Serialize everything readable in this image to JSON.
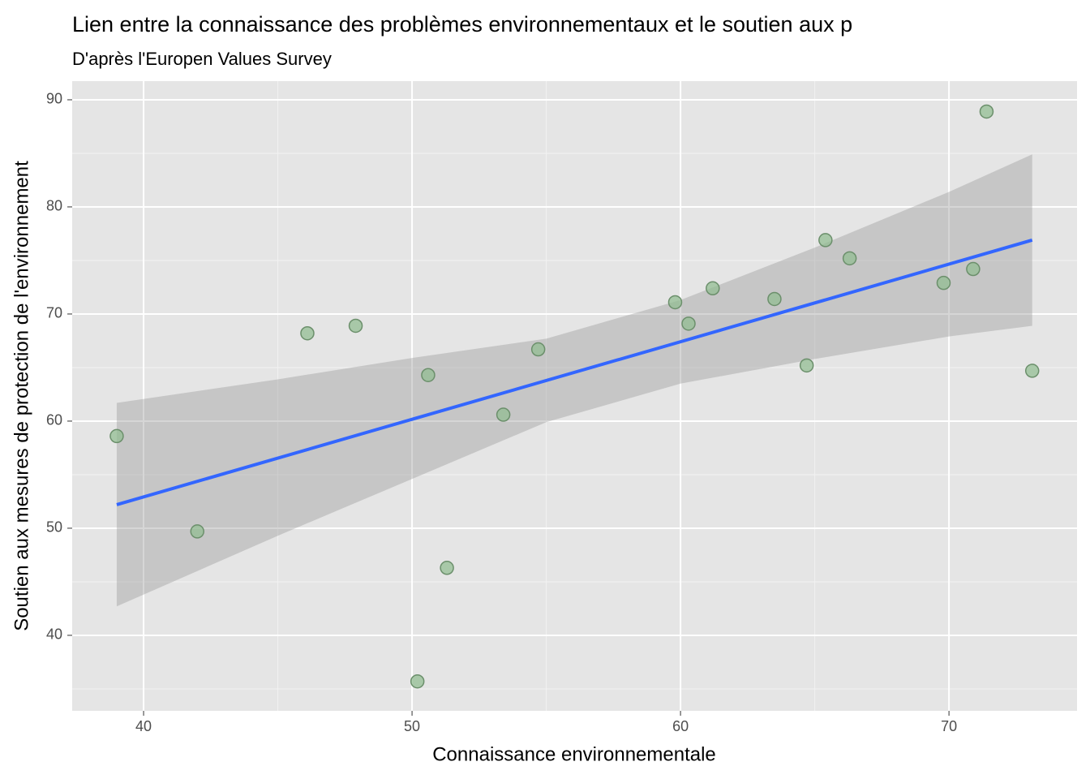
{
  "chart_data": {
    "type": "scatter",
    "title": "Lien entre la connaissance des problèmes environnementaux et le soutien aux p",
    "subtitle": "D'après l'Europen Values Survey",
    "x_label": "Connaissance environnementale",
    "y_label": "Soutien aux mesures de protection de l'environnement",
    "x": [
      39.0,
      42.0,
      46.1,
      47.9,
      50.6,
      50.2,
      51.3,
      53.4,
      54.7,
      59.8,
      60.3,
      61.2,
      63.5,
      64.7,
      65.4,
      66.3,
      69.8,
      70.9,
      71.4,
      73.1
    ],
    "values": [
      58.6,
      49.7,
      68.2,
      68.9,
      64.3,
      35.7,
      46.3,
      60.6,
      66.7,
      71.1,
      69.1,
      72.4,
      71.4,
      65.2,
      76.9,
      75.2,
      72.9,
      74.2,
      88.9,
      64.7
    ],
    "color": "#8fbc8f",
    "fit": {
      "x": [
        39.0,
        73.1
      ],
      "values": [
        52.2,
        76.9
      ],
      "color": "#3366ff"
    },
    "band": {
      "x": [
        39.0,
        45,
        50,
        55,
        60,
        65,
        70,
        73.1
      ],
      "upper": [
        61.7,
        63.9,
        65.9,
        67.7,
        71.3,
        76.2,
        81.4,
        84.9
      ],
      "lower": [
        42.7,
        49.3,
        54.6,
        59.9,
        63.5,
        65.8,
        67.9,
        68.9
      ]
    },
    "xlim": [
      37.34,
      74.77
    ],
    "ylim": [
      32.95,
      91.74
    ],
    "xticks": [
      40,
      50,
      60,
      70
    ],
    "yticks": [
      40,
      50,
      60,
      70,
      80,
      90
    ],
    "x_minor_breaks": [
      45,
      55,
      65
    ],
    "y_minor_breaks": [
      35,
      45,
      55,
      65,
      75,
      85
    ],
    "grid": true
  }
}
